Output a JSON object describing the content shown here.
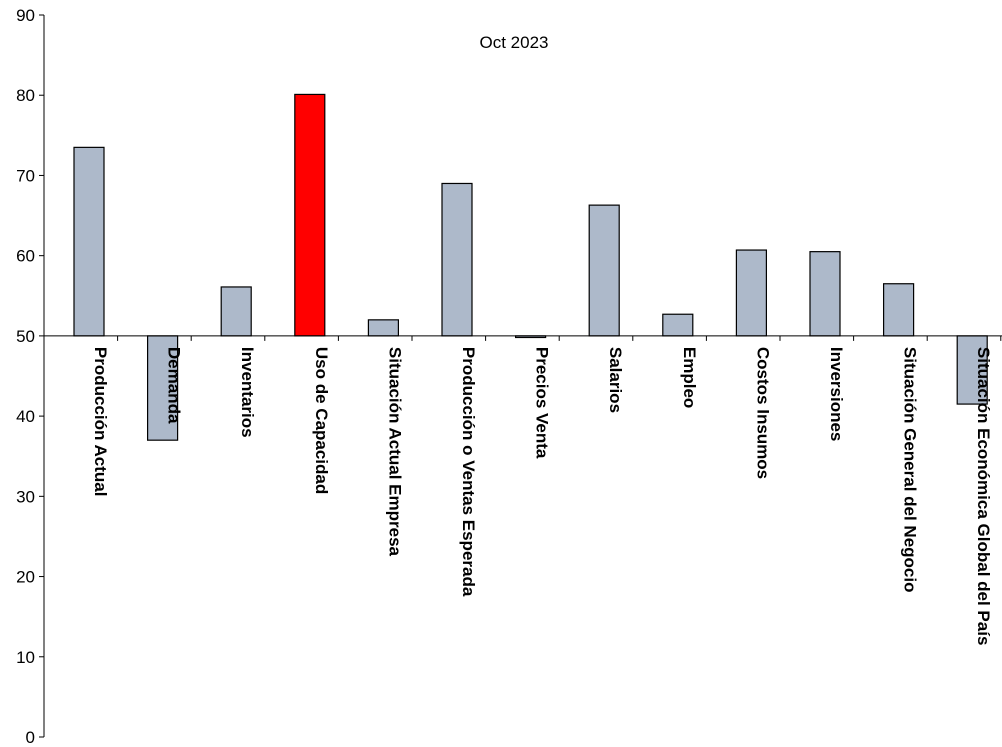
{
  "chart_data": {
    "type": "bar",
    "title": "Oct 2023",
    "xlabel": "",
    "ylabel": "",
    "ylim": [
      0,
      90
    ],
    "yticks": [
      0,
      10,
      20,
      30,
      40,
      50,
      60,
      70,
      80,
      90
    ],
    "baseline": 50,
    "grid": false,
    "categories": [
      "Producción Actual",
      "Demanda",
      "Inventarios",
      "Uso de Capacidad",
      "Situación Actual Empresa",
      "Producción o Ventas Esperada",
      "Precios Venta",
      "Salarios",
      "Empleo",
      "Costos Insumos",
      "Inversiones",
      "Situación General del Negocio",
      "Situación Económica Global del País"
    ],
    "values": [
      73.5,
      37.0,
      56.1,
      80.1,
      52.0,
      69.0,
      49.8,
      66.3,
      52.7,
      60.7,
      60.5,
      56.5,
      41.5
    ],
    "colors": {
      "default": "#adb9ca",
      "highlight": "#ff0000",
      "stroke": "#000000"
    },
    "highlight_index": 3
  }
}
